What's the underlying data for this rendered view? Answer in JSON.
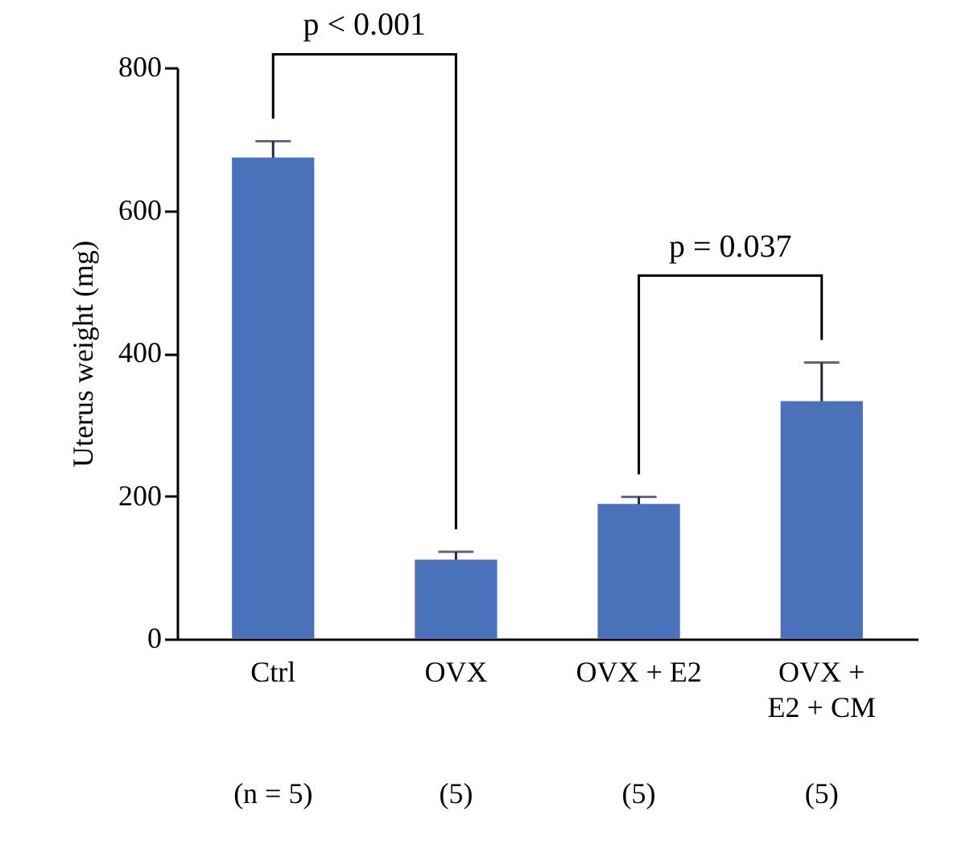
{
  "chart_data": {
    "type": "bar",
    "ylabel": "Uterus weight (mg)",
    "categories": [
      "Ctrl",
      "OVX",
      "OVX + E2",
      "OVX + E2 + CM"
    ],
    "values": [
      674,
      111,
      189,
      333
    ],
    "errors": [
      23,
      11,
      10,
      54
    ],
    "color": "#4a72bb",
    "ylim": [
      0,
      800
    ],
    "yticks": [
      0,
      200,
      400,
      600,
      800
    ],
    "grid": false,
    "legend": false,
    "annotations": [
      "p < 0.001",
      "p = 0.037",
      "(n = 5)",
      "(5)",
      "(5)",
      "(5)"
    ]
  }
}
